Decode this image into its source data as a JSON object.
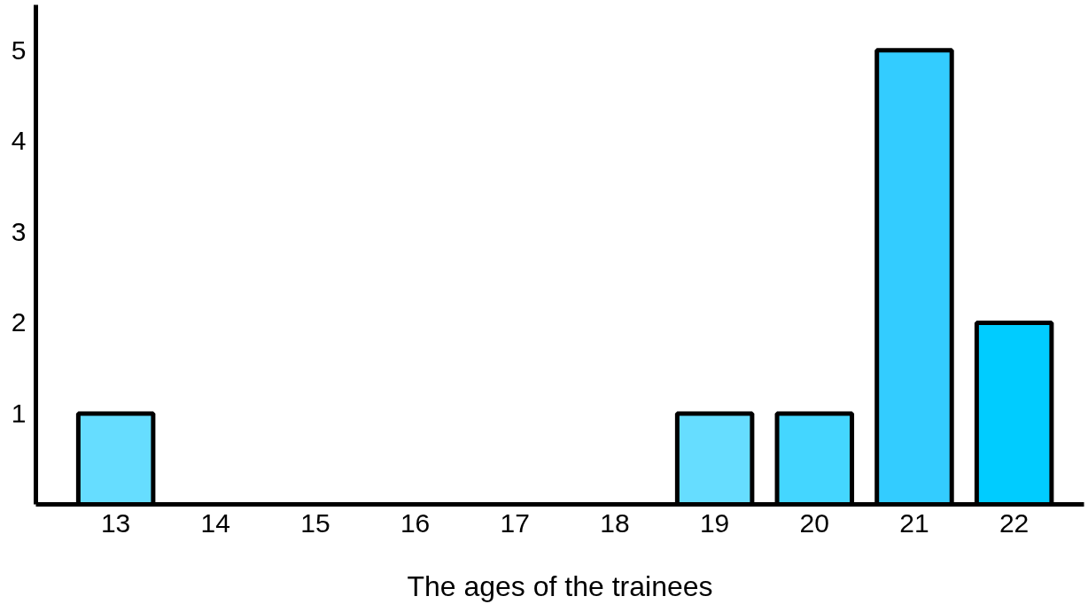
{
  "chart_data": {
    "type": "bar",
    "xlabel": "The ages of the trainees",
    "categories": [
      "13",
      "14",
      "15",
      "16",
      "17",
      "18",
      "19",
      "20",
      "21",
      "22"
    ],
    "values": [
      1,
      null,
      null,
      null,
      null,
      null,
      1,
      1,
      5,
      2
    ],
    "colors": [
      "#66ddff",
      null,
      null,
      null,
      null,
      null,
      "#66ddff",
      "#44d6ff",
      "#33ccff",
      "#00ccff"
    ],
    "ylim": [
      0,
      5.5
    ],
    "yticks": [
      1,
      2,
      3,
      4,
      5
    ],
    "grid": false
  }
}
